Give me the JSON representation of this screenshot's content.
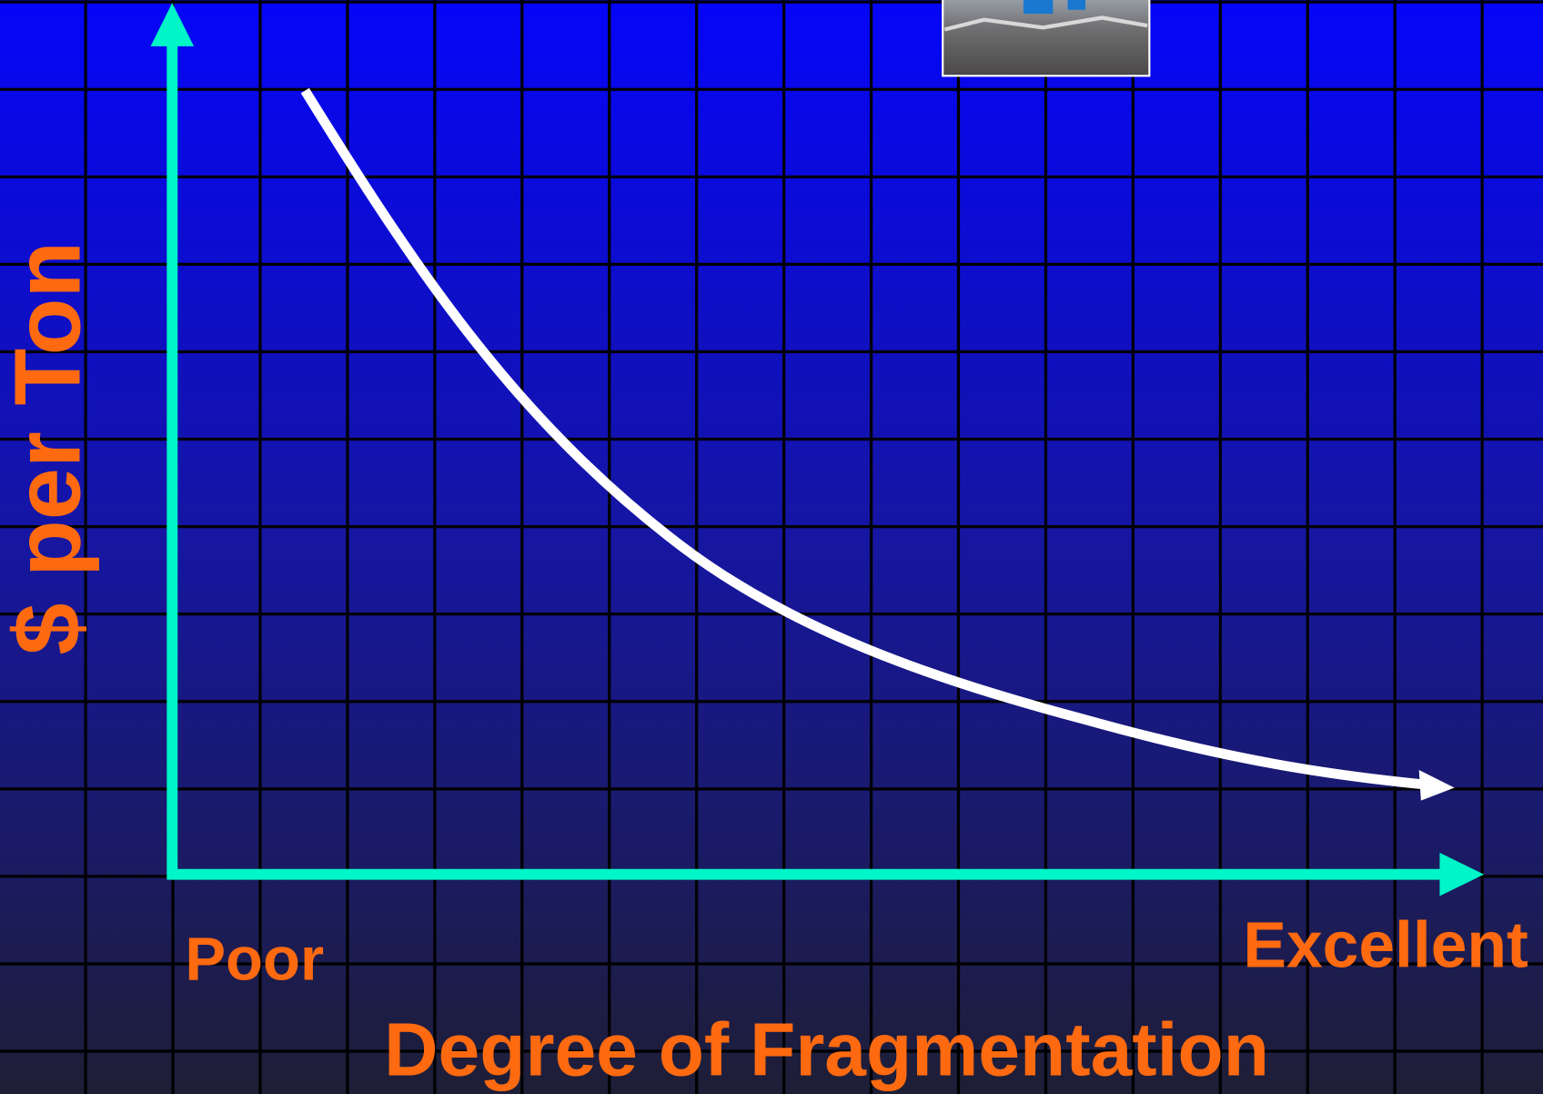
{
  "y_axis_label": "$ per Ton",
  "x_axis_label": "Degree of Fragmentation",
  "x_start_label": "Poor",
  "x_end_label": "Excellent"
}
